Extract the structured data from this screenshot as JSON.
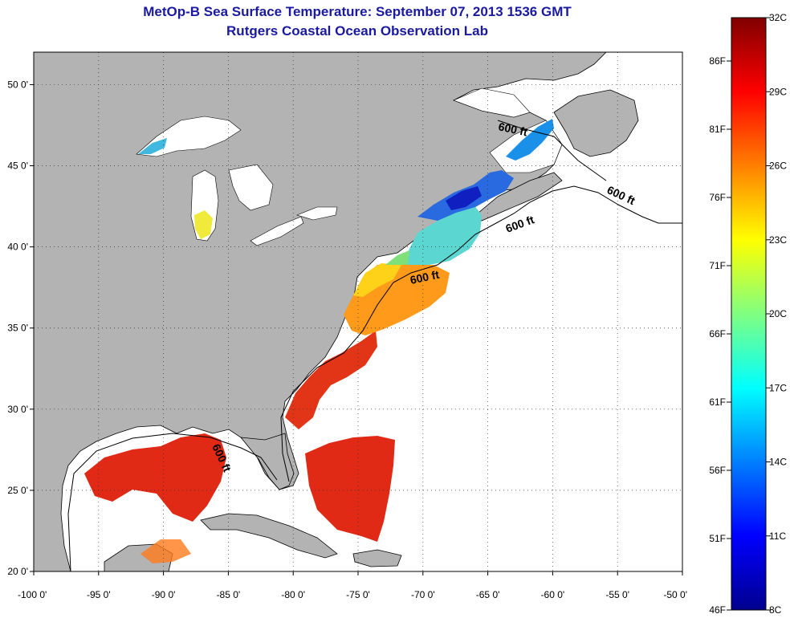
{
  "title_line1": "MetOp-B Sea Surface Temperature:  September 07, 2013 1536 GMT",
  "title_line2": "Rutgers Coastal Ocean Observation Lab",
  "map": {
    "lon_range": [
      -100,
      -50
    ],
    "lat_range": [
      20,
      52
    ],
    "lon_ticks": [
      {
        "value": -100,
        "label": "-100 0'"
      },
      {
        "value": -95,
        "label": "-95 0'"
      },
      {
        "value": -90,
        "label": "-90 0'"
      },
      {
        "value": -85,
        "label": "-85 0'"
      },
      {
        "value": -80,
        "label": "-80 0'"
      },
      {
        "value": -75,
        "label": "-75 0'"
      },
      {
        "value": -70,
        "label": "-70 0'"
      },
      {
        "value": -65,
        "label": "-65 0'"
      },
      {
        "value": -60,
        "label": "-60 0'"
      },
      {
        "value": -55,
        "label": "-55 0'"
      },
      {
        "value": -50,
        "label": "-50 0'"
      }
    ],
    "lat_ticks": [
      {
        "value": 50,
        "label": "50 0'"
      },
      {
        "value": 45,
        "label": "45 0'"
      },
      {
        "value": 40,
        "label": "40 0'"
      },
      {
        "value": 35,
        "label": "35 0'"
      },
      {
        "value": 30,
        "label": "30 0'"
      },
      {
        "value": 25,
        "label": "25 0'"
      },
      {
        "value": 20,
        "label": "20 0'"
      }
    ],
    "grid": "dotted",
    "land_color": "#b3b3b3",
    "water_color": "#ffffff",
    "contour_labels": [
      "600 ft",
      "600 ft",
      "600 ft",
      "600 ft",
      "600 ft"
    ]
  },
  "colorbar": {
    "scale": "jet",
    "celsius_labels": [
      "32C",
      "29C",
      "26C",
      "23C",
      "20C",
      "17C",
      "14C",
      "11C",
      "8C"
    ],
    "fahrenheit_labels": [
      "86F",
      "81F",
      "76F",
      "71F",
      "66F",
      "61F",
      "56F",
      "51F",
      "46F"
    ],
    "colors": [
      "#800000",
      "#ff0000",
      "#ff8000",
      "#ffff00",
      "#80ff80",
      "#00ffff",
      "#0080ff",
      "#0000ff",
      "#00008f"
    ]
  }
}
